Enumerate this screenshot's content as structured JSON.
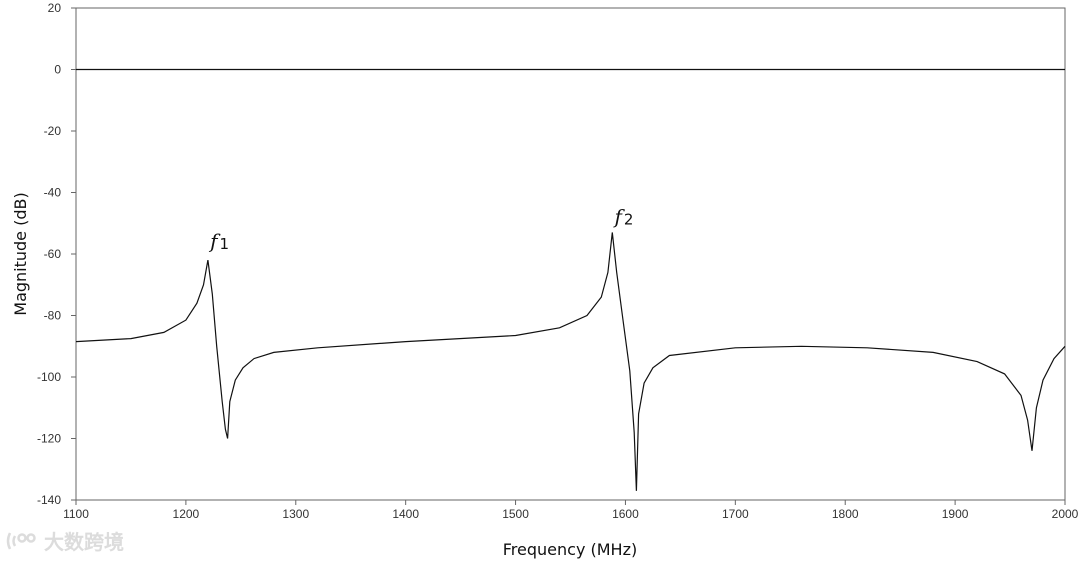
{
  "chart_data": {
    "type": "line",
    "xlabel": "Frequency (MHz)",
    "ylabel": "Magnitude (dB)",
    "xlim": [
      1100,
      2000
    ],
    "ylim": [
      -140,
      20
    ],
    "xticks": [
      1100,
      1200,
      1300,
      1400,
      1500,
      1600,
      1700,
      1800,
      1900,
      2000
    ],
    "yticks": [
      20,
      0,
      -20,
      -40,
      -60,
      -80,
      -100,
      -120,
      -140
    ],
    "reference_line_y": 0,
    "grid": false,
    "series": [
      {
        "color": "#111111",
        "x": [
          1100,
          1150,
          1180,
          1200,
          1210,
          1216,
          1220,
          1224,
          1228,
          1233,
          1236,
          1238,
          1240,
          1245,
          1252,
          1262,
          1280,
          1320,
          1400,
          1500,
          1540,
          1565,
          1578,
          1584,
          1588,
          1592,
          1598,
          1604,
          1608,
          1610,
          1612,
          1617,
          1625,
          1640,
          1700,
          1760,
          1820,
          1880,
          1920,
          1945,
          1960,
          1966,
          1970,
          1974,
          1980,
          1990,
          2000
        ],
        "y": [
          -88.5,
          -87.5,
          -85.5,
          -81.5,
          -76,
          -70,
          -62,
          -73,
          -90,
          -108,
          -117,
          -120,
          -108,
          -101,
          -97,
          -94,
          -92,
          -90.5,
          -88.5,
          -86.5,
          -84,
          -80,
          -74,
          -66,
          -53,
          -66,
          -82,
          -98,
          -118,
          -137,
          -112,
          -102,
          -97,
          -93,
          -90.5,
          -90,
          -90.5,
          -92,
          -95,
          -99,
          -106,
          -114,
          -124,
          -110,
          -101,
          -94,
          -90
        ]
      }
    ],
    "annotations": [
      {
        "label": "f",
        "subscript": "1",
        "x": 1222,
        "y": -58
      },
      {
        "label": "f",
        "subscript": "2",
        "x": 1590,
        "y": -50
      }
    ]
  },
  "watermark": {
    "icon": "sound-wave-logo-icon",
    "text": "大数跨境"
  }
}
